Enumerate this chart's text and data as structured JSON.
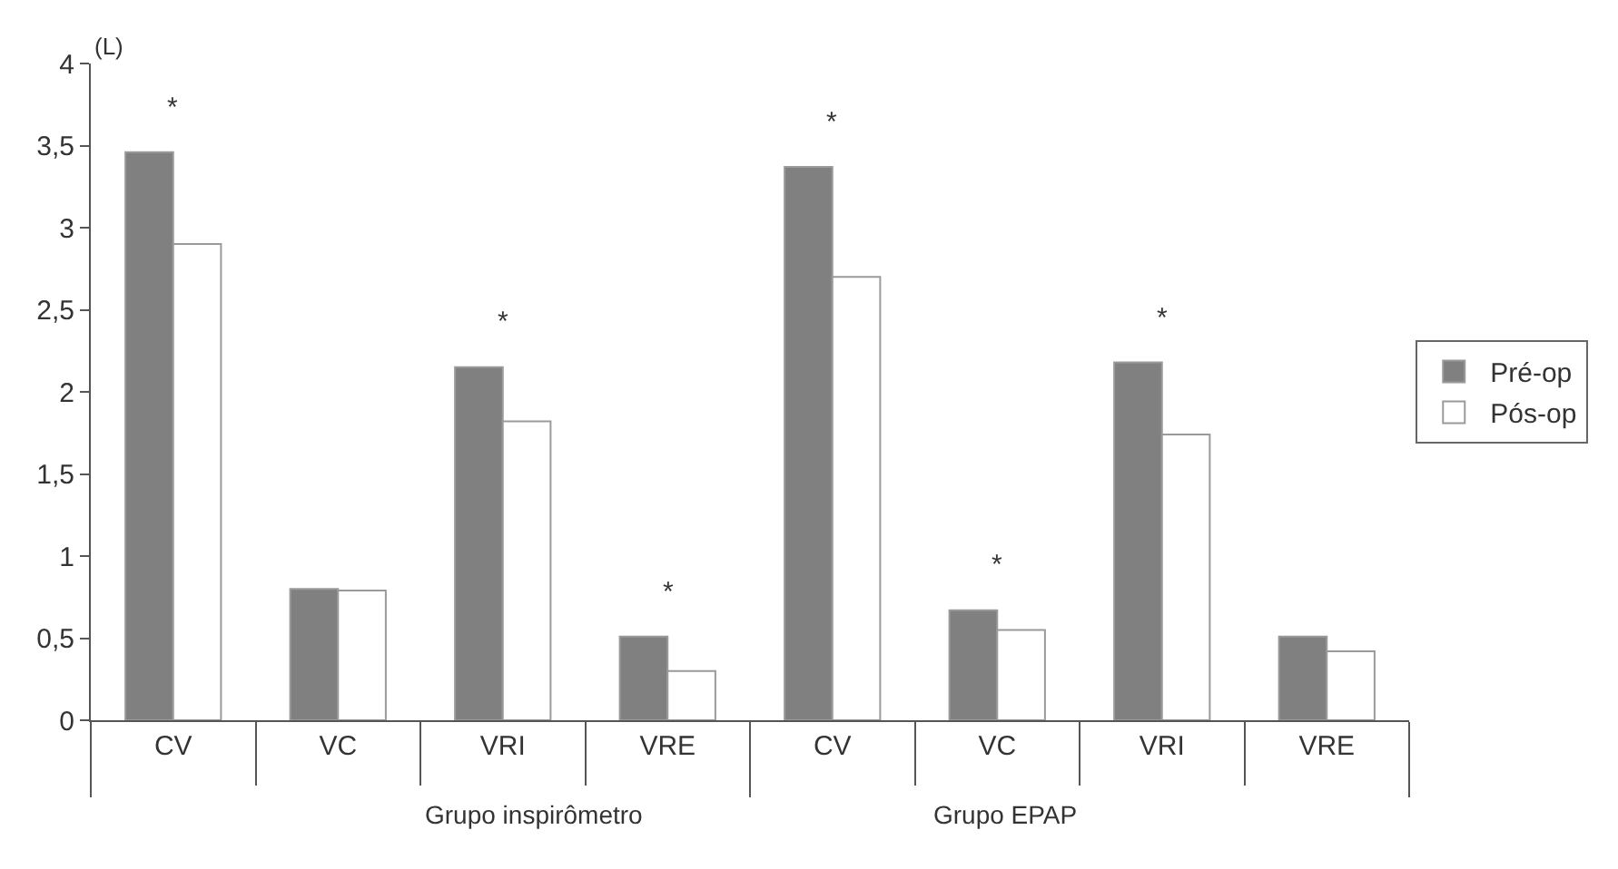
{
  "chart_data": {
    "type": "bar",
    "ylabel": "(L)",
    "categories": [
      "CV",
      "VC",
      "VRI",
      "VRE",
      "CV",
      "VC",
      "VRI",
      "VRE"
    ],
    "series": [
      {
        "name": "Pré-op",
        "color": "#808080",
        "values": [
          3.46,
          0.8,
          2.15,
          0.51,
          3.37,
          0.67,
          2.18,
          0.51
        ],
        "value_labels": [
          "*",
          null,
          "*",
          "*",
          "*",
          "*",
          "*",
          null
        ]
      },
      {
        "name": "Pós-op",
        "color": "#ffffff",
        "values": [
          2.9,
          0.79,
          1.82,
          0.3,
          2.7,
          0.55,
          1.74,
          0.42
        ]
      }
    ],
    "ylim": [
      0,
      4
    ],
    "yticks": [
      0,
      {
        "value": 0.5,
        "label": "0,5"
      },
      1,
      {
        "value": 1.5,
        "label": "1,5"
      },
      2,
      {
        "value": 2.5,
        "label": "2,5"
      },
      3,
      {
        "value": 3.5,
        "label": "3,5"
      },
      4
    ],
    "annotations": [
      "Grupo inspirômetro",
      "Grupo EPAP"
    ],
    "legend": "right"
  }
}
